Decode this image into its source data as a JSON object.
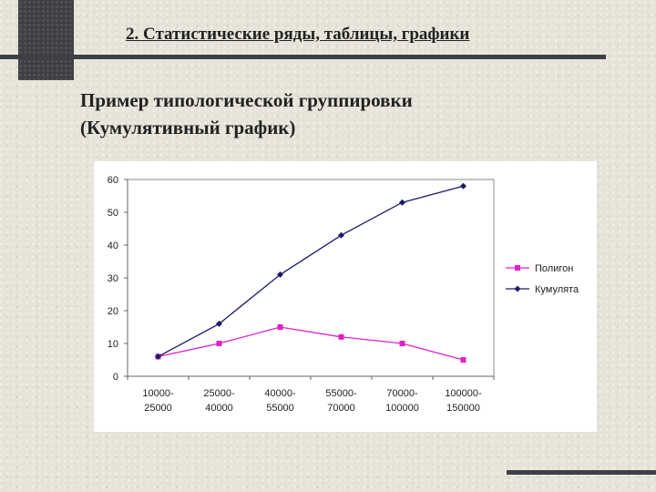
{
  "slide": {
    "title": "2. Статистические ряды, таблицы, графики",
    "subtitle_line1": "Пример типологической группировки",
    "subtitle_line2": "(Кумулятивный график)"
  },
  "chart_data": {
    "type": "line",
    "categories": [
      [
        "10000-",
        "25000"
      ],
      [
        "25000-",
        "40000"
      ],
      [
        "40000-",
        "55000"
      ],
      [
        "55000-",
        "70000"
      ],
      [
        "70000-",
        "100000"
      ],
      [
        "100000-",
        "150000"
      ]
    ],
    "ylim": [
      0,
      60
    ],
    "yticks": [
      0,
      10,
      20,
      30,
      40,
      50,
      60
    ],
    "grid": false,
    "legend_position": "right",
    "series": [
      {
        "name": "Полигон",
        "color": "#e020c8",
        "marker": "square",
        "values": [
          6,
          10,
          15,
          12,
          10,
          5
        ]
      },
      {
        "name": "Кумулята",
        "color": "#1a1a66",
        "marker": "diamond",
        "values": [
          6,
          16,
          31,
          43,
          53,
          58
        ]
      }
    ]
  }
}
